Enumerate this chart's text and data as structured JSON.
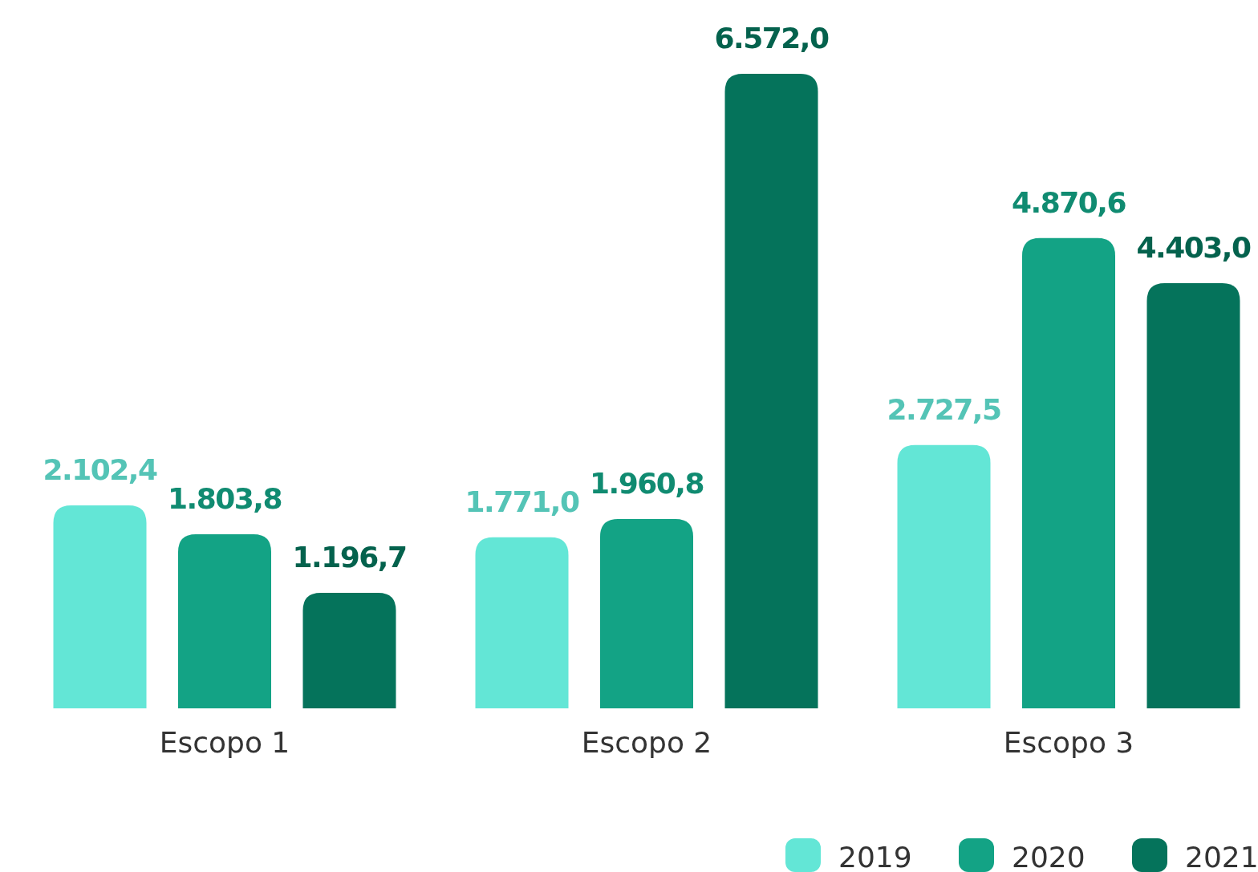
{
  "chart_data": {
    "type": "bar",
    "categories": [
      "Escopo 1",
      "Escopo 2",
      "Escopo 3"
    ],
    "series": [
      {
        "name": "2019",
        "color": "#63e6d6",
        "values": [
          2102.4,
          1771.0,
          2727.5
        ],
        "value_labels": [
          "2.102,4",
          "1.771,0",
          "2.727,5"
        ]
      },
      {
        "name": "2020",
        "color": "#13a385",
        "values": [
          1803.8,
          1960.8,
          4870.6
        ],
        "value_labels": [
          "1.803,8",
          "1.960,8",
          "4.870,6"
        ]
      },
      {
        "name": "2021",
        "color": "#05735b",
        "values": [
          1196.7,
          6572.0,
          4403.0
        ],
        "value_labels": [
          "1.196,7",
          "6.572,0",
          "4.403,0"
        ]
      }
    ],
    "legend": "bottom right"
  }
}
